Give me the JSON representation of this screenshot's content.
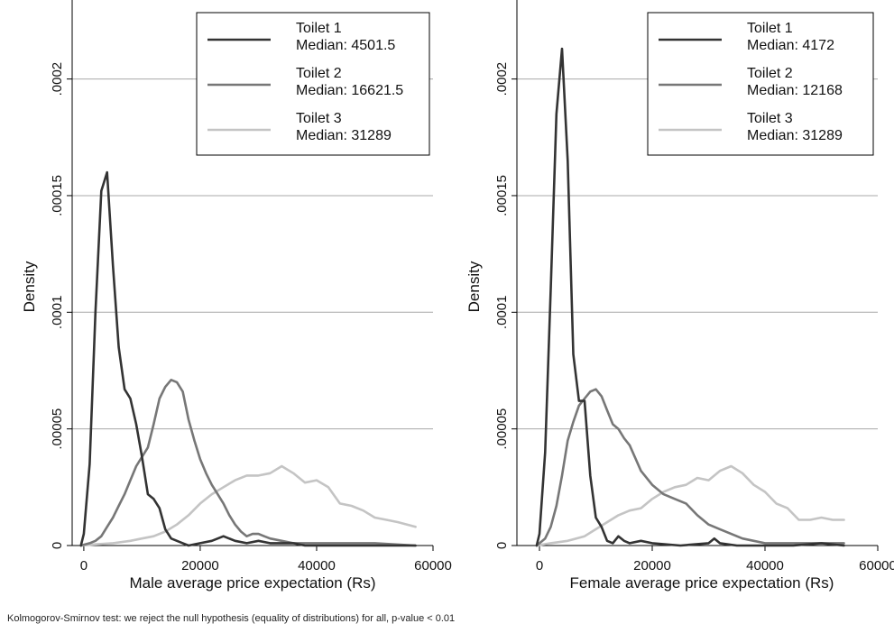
{
  "colors": {
    "toilet1": "#333333",
    "toilet2": "#777777",
    "toilet3": "#c4c4c4",
    "grid": "#a8a8a8",
    "axis": "#000000"
  },
  "footnote": "Kolmogorov-Smirnov test: we reject the null hypothesis (equality of distributions) for all, p-value < 0.01",
  "chart_data": [
    {
      "type": "line",
      "id": "male",
      "xlabel": "Male average price expectation (Rs)",
      "ylabel": "Density",
      "xlim": [
        -2000,
        60000
      ],
      "ylim": [
        0,
        0.00023
      ],
      "xticks": [
        0,
        20000,
        40000,
        60000
      ],
      "xtick_labels": [
        "0",
        "20000",
        "40000",
        "60000"
      ],
      "yticks": [
        0,
        5e-05,
        0.0001,
        0.00015,
        0.0002
      ],
      "ytick_labels": [
        "0",
        ".00005",
        ".0001",
        ".00015",
        ".0002"
      ],
      "grid": true,
      "legend_position": "top-right",
      "series": [
        {
          "name": "Toilet 1",
          "legend_lines": [
            "Toilet 1",
            "Median: 4501.5"
          ],
          "color_key": "toilet1",
          "x": [
            -500,
            0,
            1000,
            2000,
            3000,
            4000,
            5000,
            6000,
            7000,
            8000,
            9000,
            10000,
            11000,
            12000,
            13000,
            14000,
            15000,
            16000,
            17000,
            18000,
            20000,
            22000,
            24000,
            26000,
            28000,
            30000,
            32000,
            34000,
            36000,
            38000,
            40000,
            45000,
            50000,
            57000
          ],
          "y": [
            0.0,
            5e-06,
            3.5e-05,
            0.0001,
            0.000152,
            0.00016,
            0.00012,
            8.5e-05,
            6.7e-05,
            6.3e-05,
            5.2e-05,
            3.8e-05,
            2.2e-05,
            2e-05,
            1.6e-05,
            7e-06,
            3e-06,
            2e-06,
            1e-06,
            0.0,
            1e-06,
            2e-06,
            4e-06,
            2e-06,
            1e-06,
            2e-06,
            1e-06,
            1e-06,
            1e-06,
            0.0,
            0.0,
            0.0,
            0.0,
            0.0
          ]
        },
        {
          "name": "Toilet 2",
          "legend_lines": [
            "Toilet 2",
            "Median: 16621.5"
          ],
          "color_key": "toilet2",
          "x": [
            -500,
            1000,
            2000,
            3000,
            4000,
            5000,
            6000,
            7000,
            8000,
            9000,
            10000,
            11000,
            12000,
            13000,
            14000,
            15000,
            16000,
            17000,
            18000,
            19000,
            20000,
            21000,
            22000,
            23000,
            24000,
            25000,
            26000,
            27000,
            28000,
            29000,
            30000,
            31000,
            32000,
            34000,
            36000,
            38000,
            40000,
            45000,
            50000,
            57000
          ],
          "y": [
            0.0,
            1e-06,
            2e-06,
            4e-06,
            8e-06,
            1.2e-05,
            1.7e-05,
            2.2e-05,
            2.8e-05,
            3.4e-05,
            3.8e-05,
            4.2e-05,
            5.2e-05,
            6.3e-05,
            6.8e-05,
            7.1e-05,
            7e-05,
            6.6e-05,
            5.4e-05,
            4.5e-05,
            3.7e-05,
            3.1e-05,
            2.6e-05,
            2.2e-05,
            1.8e-05,
            1.3e-05,
            9e-06,
            6e-06,
            4e-06,
            5e-06,
            5e-06,
            4e-06,
            3e-06,
            2e-06,
            1e-06,
            1e-06,
            1e-06,
            1e-06,
            1e-06,
            0.0
          ]
        },
        {
          "name": "Toilet 3",
          "legend_lines": [
            "Toilet 3",
            "Median: 31289"
          ],
          "color_key": "toilet3",
          "x": [
            -500,
            2000,
            5000,
            8000,
            10000,
            12000,
            14000,
            16000,
            18000,
            20000,
            22000,
            24000,
            26000,
            28000,
            30000,
            32000,
            34000,
            36000,
            38000,
            40000,
            42000,
            44000,
            46000,
            48000,
            50000,
            52000,
            54000,
            57000
          ],
          "y": [
            0.0,
            5e-07,
            1e-06,
            2e-06,
            3e-06,
            4e-06,
            6e-06,
            9e-06,
            1.3e-05,
            1.8e-05,
            2.2e-05,
            2.5e-05,
            2.8e-05,
            3e-05,
            3e-05,
            3.1e-05,
            3.4e-05,
            3.1e-05,
            2.7e-05,
            2.8e-05,
            2.5e-05,
            1.8e-05,
            1.7e-05,
            1.5e-05,
            1.2e-05,
            1.1e-05,
            1e-05,
            8e-06
          ]
        }
      ]
    },
    {
      "type": "line",
      "id": "female",
      "xlabel": "Female average price expectation (Rs)",
      "ylabel": "Density",
      "xlim": [
        -4000,
        60000
      ],
      "ylim": [
        0,
        0.00023
      ],
      "xticks": [
        0,
        20000,
        40000,
        60000
      ],
      "xtick_labels": [
        "0",
        "20000",
        "40000",
        "60000"
      ],
      "yticks": [
        0,
        5e-05,
        0.0001,
        0.00015,
        0.0002
      ],
      "ytick_labels": [
        "0",
        ".00005",
        ".0001",
        ".00015",
        ".0002"
      ],
      "grid": true,
      "legend_position": "top-right",
      "series": [
        {
          "name": "Toilet 1",
          "legend_lines": [
            "Toilet 1",
            "Median: 4172"
          ],
          "color_key": "toilet1",
          "x": [
            -500,
            0,
            1000,
            2000,
            3000,
            4000,
            5000,
            6000,
            7000,
            8000,
            9000,
            10000,
            11000,
            12000,
            13000,
            14000,
            15000,
            16000,
            18000,
            20000,
            25000,
            30000,
            31000,
            32000,
            35000,
            40000,
            45000,
            50000,
            54000
          ],
          "y": [
            0.0,
            5e-06,
            4e-05,
            0.00011,
            0.000185,
            0.000213,
            0.000165,
            8.2e-05,
            6.2e-05,
            6.2e-05,
            3e-05,
            1.2e-05,
            8e-06,
            2e-06,
            1e-06,
            4e-06,
            2e-06,
            1e-06,
            2e-06,
            1e-06,
            0.0,
            1e-06,
            3e-06,
            1e-06,
            0.0,
            0.0,
            0.0,
            1e-06,
            0.0
          ]
        },
        {
          "name": "Toilet 2",
          "legend_lines": [
            "Toilet 2",
            "Median: 12168"
          ],
          "color_key": "toilet2",
          "x": [
            -500,
            1000,
            2000,
            3000,
            4000,
            5000,
            6000,
            7000,
            8000,
            9000,
            10000,
            11000,
            12000,
            13000,
            14000,
            15000,
            16000,
            18000,
            20000,
            22000,
            24000,
            26000,
            28000,
            30000,
            32000,
            34000,
            36000,
            38000,
            40000,
            45000,
            50000,
            54000
          ],
          "y": [
            0.0,
            3e-06,
            8e-06,
            1.7e-05,
            3e-05,
            4.5e-05,
            5.3e-05,
            6e-05,
            6.3e-05,
            6.6e-05,
            6.7e-05,
            6.4e-05,
            5.8e-05,
            5.2e-05,
            5e-05,
            4.6e-05,
            4.3e-05,
            3.2e-05,
            2.6e-05,
            2.2e-05,
            2e-05,
            1.8e-05,
            1.3e-05,
            9e-06,
            7e-06,
            5e-06,
            3e-06,
            2e-06,
            1e-06,
            1e-06,
            1e-06,
            1e-06
          ]
        },
        {
          "name": "Toilet 3",
          "legend_lines": [
            "Toilet 3",
            "Median: 31289"
          ],
          "color_key": "toilet3",
          "x": [
            -500,
            2000,
            5000,
            8000,
            10000,
            12000,
            14000,
            16000,
            18000,
            20000,
            22000,
            24000,
            26000,
            28000,
            30000,
            32000,
            34000,
            36000,
            38000,
            40000,
            42000,
            44000,
            46000,
            48000,
            50000,
            52000,
            54000
          ],
          "y": [
            0.0,
            1e-06,
            2e-06,
            4e-06,
            7e-06,
            1e-05,
            1.3e-05,
            1.5e-05,
            1.6e-05,
            2e-05,
            2.3e-05,
            2.5e-05,
            2.6e-05,
            2.9e-05,
            2.8e-05,
            3.2e-05,
            3.4e-05,
            3.1e-05,
            2.6e-05,
            2.3e-05,
            1.8e-05,
            1.6e-05,
            1.1e-05,
            1.1e-05,
            1.2e-05,
            1.1e-05,
            1.1e-05
          ]
        }
      ]
    }
  ]
}
